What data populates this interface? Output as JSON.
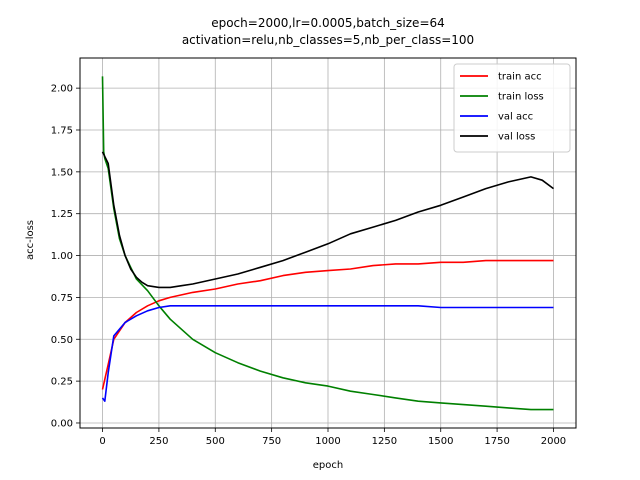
{
  "chart_data": {
    "type": "line",
    "title": [
      "epoch=2000,lr=0.0005,batch_size=64",
      "activation=relu,nb_classes=5,nb_per_class=100"
    ],
    "xlabel": "epoch",
    "ylabel": "acc-loss",
    "xlim": [
      -100,
      2100
    ],
    "ylim": [
      -0.03,
      2.18
    ],
    "xticks": [
      0,
      250,
      500,
      750,
      1000,
      1250,
      1500,
      1750,
      2000
    ],
    "xtick_labels": [
      "0",
      "250",
      "500",
      "750",
      "1000",
      "1250",
      "1500",
      "1750",
      "2000"
    ],
    "yticks": [
      0.0,
      0.25,
      0.5,
      0.75,
      1.0,
      1.25,
      1.5,
      1.75,
      2.0
    ],
    "ytick_labels": [
      "0.00",
      "0.25",
      "0.50",
      "0.75",
      "1.00",
      "1.25",
      "1.50",
      "1.75",
      "2.00"
    ],
    "grid": true,
    "legend_position": "top-right",
    "series": [
      {
        "name": "train acc",
        "color": "#ff0000",
        "x": [
          0,
          25,
          50,
          100,
          150,
          200,
          250,
          300,
          400,
          500,
          600,
          700,
          800,
          900,
          1000,
          1100,
          1200,
          1300,
          1400,
          1500,
          1600,
          1700,
          1800,
          1900,
          2000
        ],
        "y": [
          0.2,
          0.35,
          0.5,
          0.6,
          0.66,
          0.7,
          0.73,
          0.75,
          0.78,
          0.8,
          0.83,
          0.85,
          0.88,
          0.9,
          0.91,
          0.92,
          0.94,
          0.95,
          0.95,
          0.96,
          0.96,
          0.97,
          0.97,
          0.97,
          0.97
        ]
      },
      {
        "name": "train loss",
        "color": "#008000",
        "x": [
          0,
          5,
          10,
          25,
          50,
          75,
          100,
          125,
          150,
          200,
          250,
          300,
          400,
          500,
          600,
          700,
          800,
          900,
          1000,
          1100,
          1200,
          1300,
          1400,
          1500,
          1600,
          1700,
          1800,
          1900,
          2000
        ],
        "y": [
          2.07,
          1.62,
          1.58,
          1.52,
          1.28,
          1.1,
          1.0,
          0.93,
          0.86,
          0.79,
          0.7,
          0.62,
          0.5,
          0.42,
          0.36,
          0.31,
          0.27,
          0.24,
          0.22,
          0.19,
          0.17,
          0.15,
          0.13,
          0.12,
          0.11,
          0.1,
          0.09,
          0.08,
          0.08
        ]
      },
      {
        "name": "val acc",
        "color": "#0000ff",
        "x": [
          0,
          10,
          25,
          50,
          75,
          100,
          150,
          200,
          250,
          300,
          400,
          500,
          600,
          700,
          800,
          900,
          1000,
          1100,
          1200,
          1300,
          1400,
          1500,
          1600,
          1700,
          1800,
          1900,
          2000
        ],
        "y": [
          0.15,
          0.13,
          0.3,
          0.52,
          0.56,
          0.6,
          0.64,
          0.67,
          0.69,
          0.7,
          0.7,
          0.7,
          0.7,
          0.7,
          0.7,
          0.7,
          0.7,
          0.7,
          0.7,
          0.7,
          0.7,
          0.69,
          0.69,
          0.69,
          0.69,
          0.69,
          0.69
        ]
      },
      {
        "name": "val loss",
        "color": "#000000",
        "x": [
          0,
          25,
          50,
          75,
          100,
          125,
          150,
          175,
          200,
          250,
          300,
          350,
          400,
          500,
          600,
          700,
          800,
          900,
          1000,
          1100,
          1200,
          1300,
          1400,
          1500,
          1600,
          1700,
          1800,
          1900,
          1950,
          2000
        ],
        "y": [
          1.62,
          1.55,
          1.3,
          1.12,
          1.0,
          0.92,
          0.87,
          0.84,
          0.82,
          0.81,
          0.81,
          0.82,
          0.83,
          0.86,
          0.89,
          0.93,
          0.97,
          1.02,
          1.07,
          1.13,
          1.17,
          1.21,
          1.26,
          1.3,
          1.35,
          1.4,
          1.44,
          1.47,
          1.45,
          1.4
        ]
      }
    ]
  }
}
